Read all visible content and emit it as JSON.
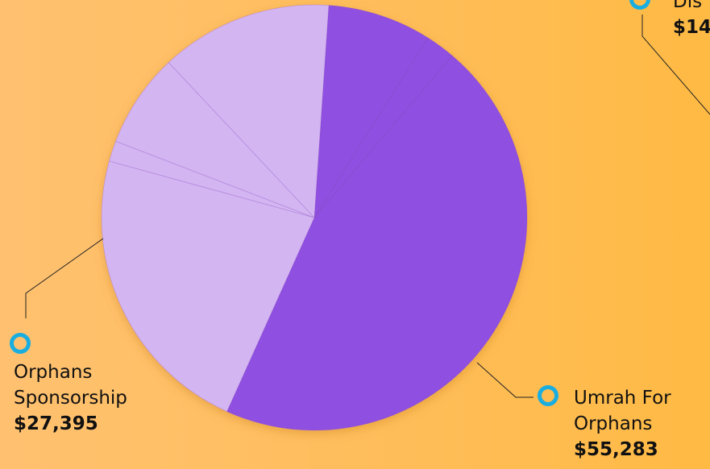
{
  "chart_data": {
    "type": "pie",
    "categories": [
      null,
      null,
      "Umrah For Orphans",
      "Orphans Sponsorship",
      null,
      null,
      null
    ],
    "values": [
      9600,
      2750,
      55283,
      27395,
      1900,
      8700,
      15900
    ],
    "value_labels": [
      null,
      null,
      "$55,283",
      "$27,395",
      null,
      null,
      null
    ],
    "colors": [
      "#8f4fe0",
      "#8f4fe0",
      "#8f4fe0",
      "#d3b5f2",
      "#d3b5f2",
      "#d3b5f2",
      "#d3b5f2"
    ],
    "annotations": [
      "Dis",
      "$14"
    ]
  }
}
